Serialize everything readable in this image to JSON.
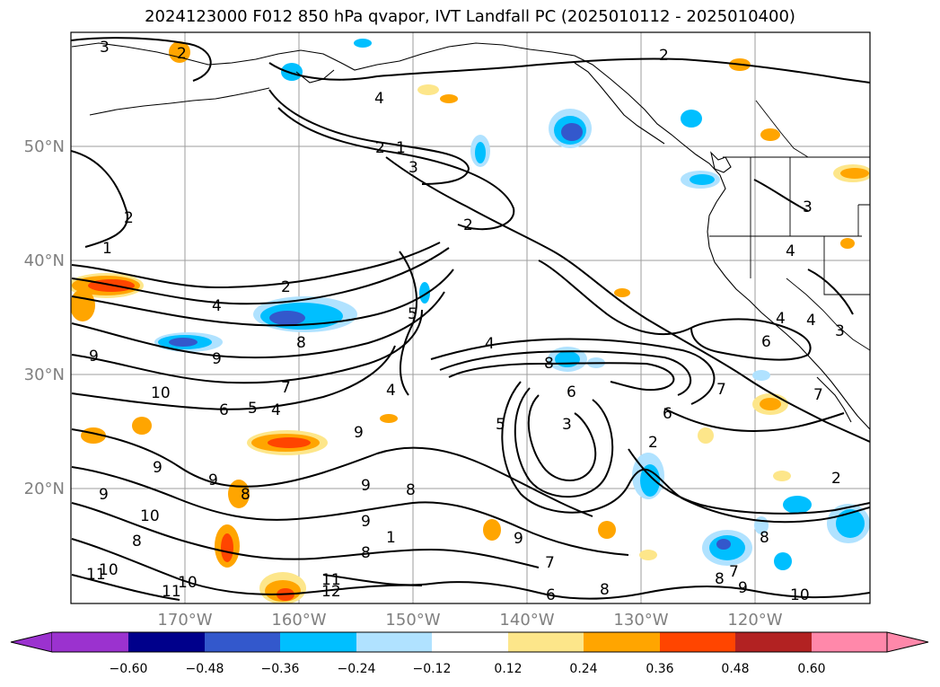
{
  "title": "2024123000 F012 850 hPa qvapor, IVT Landfall PC (2025010112 - 2025010400)",
  "map": {
    "lat_labels": [
      "50°N",
      "40°N",
      "30°N",
      "20°N"
    ],
    "lon_labels": [
      "170°W",
      "160°W",
      "150°W",
      "140°W",
      "130°W",
      "120°W"
    ],
    "colorbar": {
      "ticks": [
        "−0.60",
        "−0.48",
        "−0.36",
        "−0.24",
        "−0.12",
        "0.12",
        "0.24",
        "0.36",
        "0.48",
        "0.60"
      ],
      "colors": [
        "#9b32cf",
        "#00008b",
        "#3358cc",
        "#00bfff",
        "#b0e2ff",
        "#ffffff",
        "#fde68a",
        "#ffa500",
        "#ff4500",
        "#b22222",
        "#ff88aa"
      ],
      "extend": "both"
    },
    "contour_labels": [
      {
        "text": "3",
        "id": "c1"
      },
      {
        "text": "2",
        "id": "c2"
      },
      {
        "text": "2",
        "id": "c3"
      },
      {
        "text": "4",
        "id": "c4"
      },
      {
        "text": "2",
        "id": "c5"
      },
      {
        "text": "1",
        "id": "c6"
      },
      {
        "text": "3",
        "id": "c7"
      },
      {
        "text": "2",
        "id": "c8"
      },
      {
        "text": "2",
        "id": "c9"
      },
      {
        "text": "3",
        "id": "c10"
      },
      {
        "text": "1",
        "id": "c11"
      },
      {
        "text": "4",
        "id": "c12"
      },
      {
        "text": "2",
        "id": "c13"
      },
      {
        "text": "5",
        "id": "c14"
      },
      {
        "text": "4",
        "id": "c15"
      },
      {
        "text": "8",
        "id": "c16"
      },
      {
        "text": "9",
        "id": "c17"
      },
      {
        "text": "9",
        "id": "c18"
      },
      {
        "text": "10",
        "id": "c19"
      },
      {
        "text": "7",
        "id": "c20"
      },
      {
        "text": "6",
        "id": "c21"
      },
      {
        "text": "5",
        "id": "c22"
      },
      {
        "text": "4",
        "id": "c23"
      },
      {
        "text": "4",
        "id": "c24"
      },
      {
        "text": "4",
        "id": "c25"
      },
      {
        "text": "8",
        "id": "c26"
      },
      {
        "text": "6",
        "id": "c27"
      },
      {
        "text": "7",
        "id": "c28"
      },
      {
        "text": "3",
        "id": "c29"
      },
      {
        "text": "5",
        "id": "c30"
      },
      {
        "text": "6",
        "id": "c31"
      },
      {
        "text": "2",
        "id": "c32"
      },
      {
        "text": "4",
        "id": "c33"
      },
      {
        "text": "3",
        "id": "c34"
      },
      {
        "text": "4",
        "id": "c35"
      },
      {
        "text": "6",
        "id": "c36"
      },
      {
        "text": "7",
        "id": "c37"
      },
      {
        "text": "2",
        "id": "c38"
      },
      {
        "text": "9",
        "id": "c39"
      },
      {
        "text": "9",
        "id": "c40"
      },
      {
        "text": "9",
        "id": "c41"
      },
      {
        "text": "8",
        "id": "c42"
      },
      {
        "text": "9",
        "id": "c43"
      },
      {
        "text": "10",
        "id": "c44"
      },
      {
        "text": "8",
        "id": "c45"
      },
      {
        "text": "11",
        "id": "c46"
      },
      {
        "text": "10",
        "id": "c47"
      },
      {
        "text": "10",
        "id": "c48"
      },
      {
        "text": "11",
        "id": "c49"
      },
      {
        "text": "11",
        "id": "c50"
      },
      {
        "text": "12",
        "id": "c51"
      },
      {
        "text": "9",
        "id": "c52"
      },
      {
        "text": "8",
        "id": "c53"
      },
      {
        "text": "8",
        "id": "c54"
      },
      {
        "text": "9",
        "id": "c55"
      },
      {
        "text": "7",
        "id": "c56"
      },
      {
        "text": "6",
        "id": "c57"
      },
      {
        "text": "8",
        "id": "c58"
      },
      {
        "text": "8",
        "id": "c59"
      },
      {
        "text": "7",
        "id": "c60"
      },
      {
        "text": "9",
        "id": "c61"
      },
      {
        "text": "10",
        "id": "c62"
      },
      {
        "text": "1",
        "id": "c63"
      },
      {
        "text": "9",
        "id": "c64"
      },
      {
        "text": "8",
        "id": "c65"
      }
    ]
  }
}
